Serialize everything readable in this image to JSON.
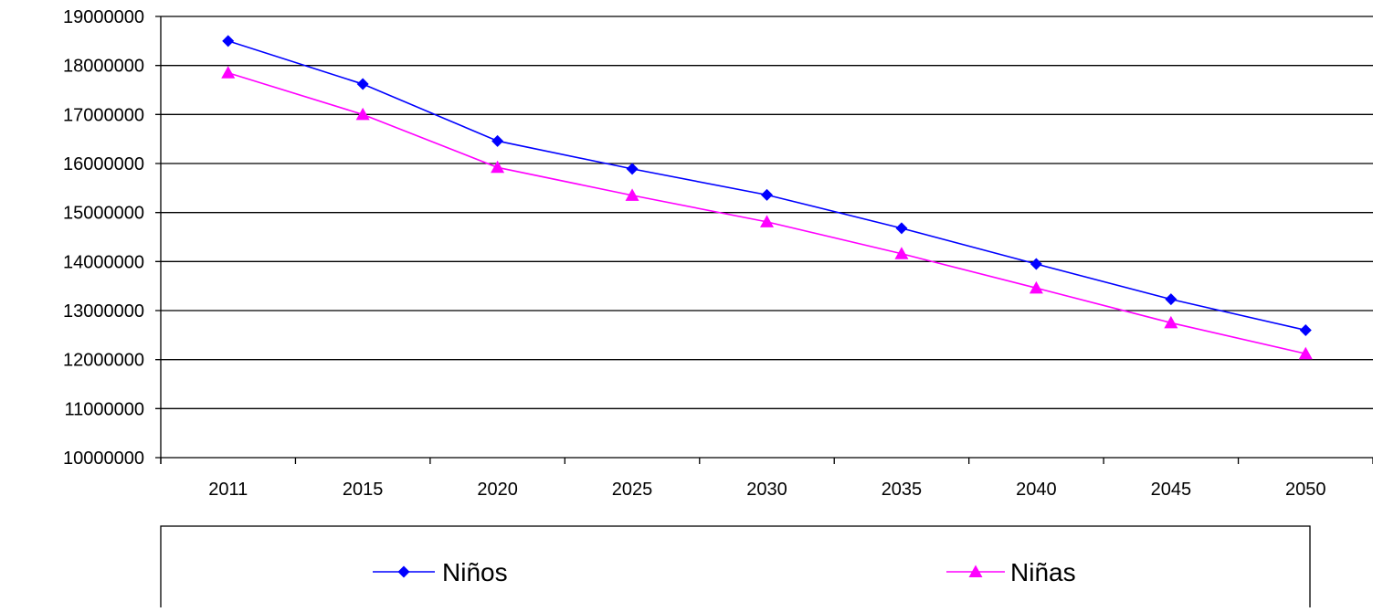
{
  "chart_data": {
    "type": "line",
    "title": "",
    "xlabel": "",
    "ylabel": "",
    "categories": [
      "2011",
      "2015",
      "2020",
      "2025",
      "2030",
      "2035",
      "2040",
      "2045",
      "2050"
    ],
    "series": [
      {
        "name": "Niños",
        "color": "#0000ff",
        "marker": "diamond",
        "values": [
          18500000,
          17620000,
          16460000,
          15890000,
          15360000,
          14680000,
          13950000,
          13230000,
          12600000
        ]
      },
      {
        "name": "Niñas",
        "color": "#ff00ff",
        "marker": "triangle",
        "values": [
          17850000,
          17000000,
          15920000,
          15350000,
          14810000,
          14160000,
          13460000,
          12750000,
          12120000
        ]
      }
    ],
    "ylim": [
      10000000,
      19000000
    ],
    "y_ticks": [
      "10000000",
      "11000000",
      "12000000",
      "13000000",
      "14000000",
      "15000000",
      "16000000",
      "17000000",
      "18000000",
      "19000000"
    ],
    "grid": true,
    "legend": "bottom"
  }
}
